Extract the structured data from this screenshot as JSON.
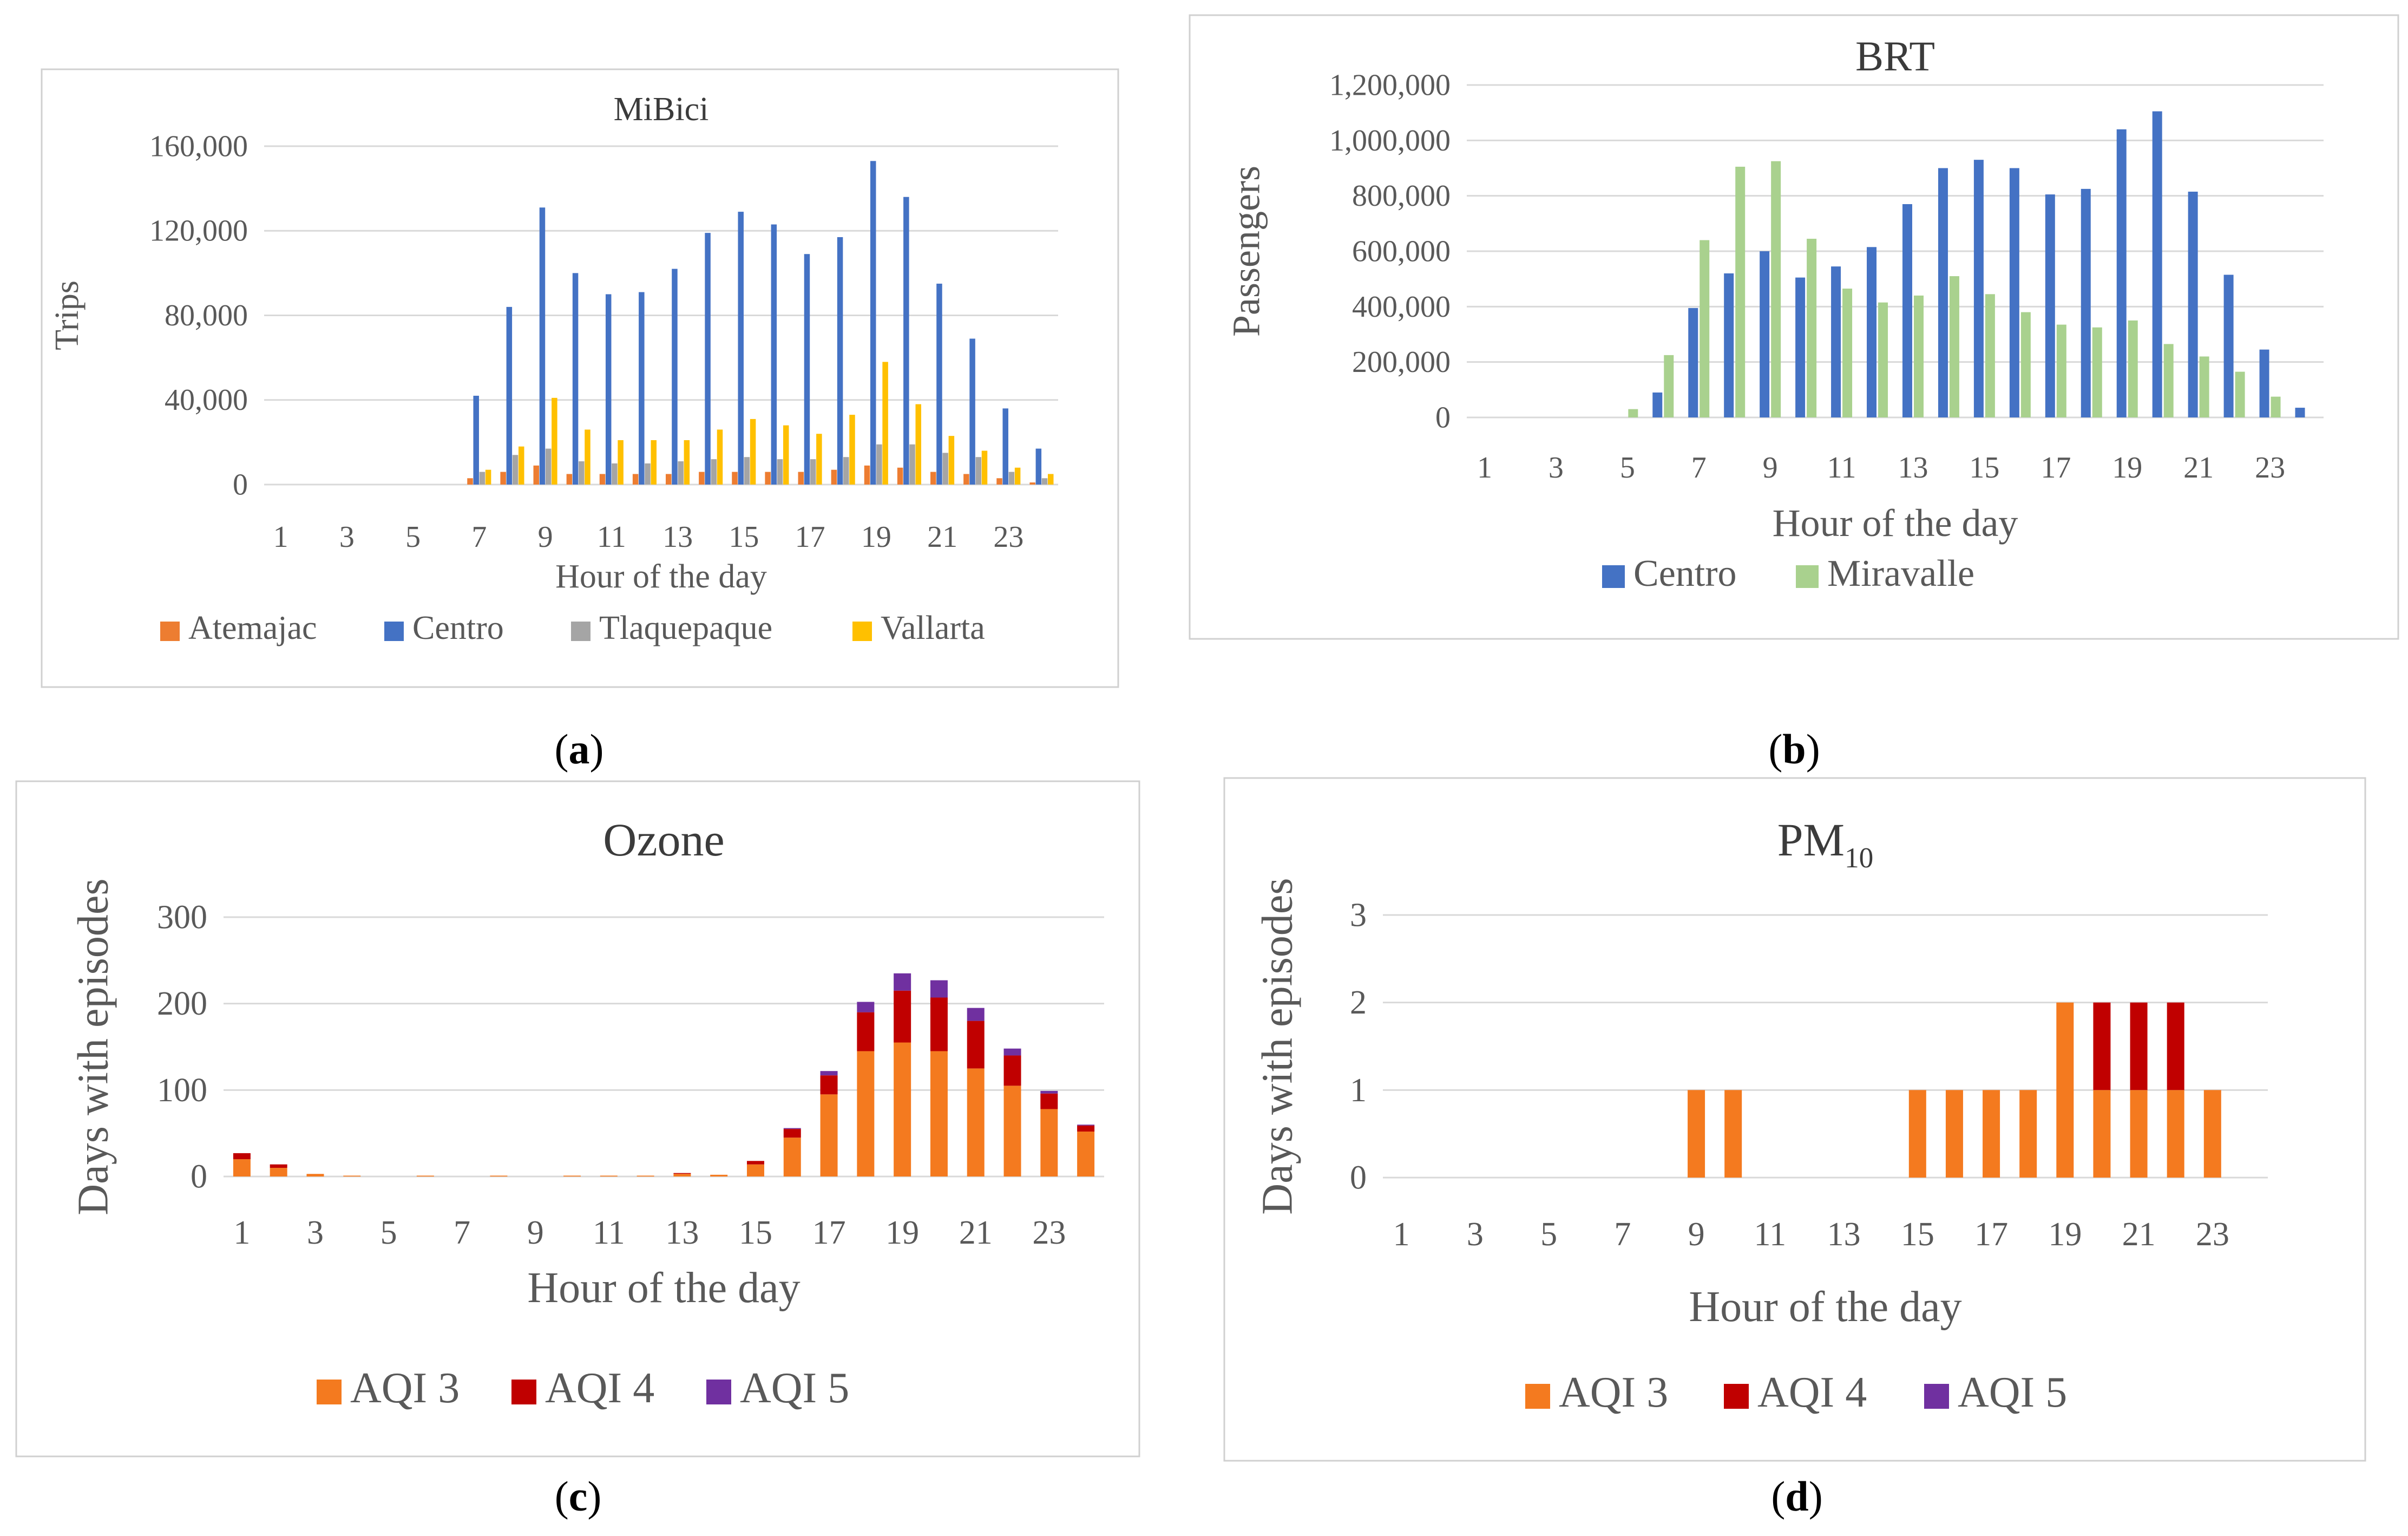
{
  "colors": {
    "atemajac": "#ED7D31",
    "centro": "#4472C4",
    "tlaquepaque": "#A5A5A5",
    "vallarta": "#FFC000",
    "brt_centro": "#4472C4",
    "miravalle": "#A9D18E",
    "aqi3": "#F47A1F",
    "aqi4": "#C00000",
    "aqi5": "#7030A0",
    "gridline": "#D9D9D9",
    "text": "#595959",
    "border": "#D0D0D0"
  },
  "panel_labels": {
    "a": {
      "open": "(",
      "letter": "a",
      "close": ")"
    },
    "b": {
      "open": "(",
      "letter": "b",
      "close": ")"
    },
    "c": {
      "open": "(",
      "letter": "c",
      "close": ")"
    },
    "d": {
      "open": "(",
      "letter": "d",
      "close": ")"
    }
  },
  "chart_data": [
    {
      "id": "a",
      "type": "bar",
      "title": "MiBici",
      "xlabel": "Hour of the day",
      "ylabel": "Trips",
      "ylim": [
        0,
        160000
      ],
      "yticks": [
        0,
        40000,
        80000,
        120000,
        160000
      ],
      "ytick_labels": [
        "0",
        "40,000",
        "80,000",
        "120,000",
        "160,000"
      ],
      "categories": [
        "1",
        "2",
        "3",
        "4",
        "5",
        "6",
        "7",
        "8",
        "9",
        "10",
        "11",
        "12",
        "13",
        "14",
        "15",
        "16",
        "17",
        "18",
        "19",
        "20",
        "21",
        "22",
        "23",
        "24"
      ],
      "xtick_labels": [
        "1",
        "",
        "3",
        "",
        "5",
        "",
        "7",
        "",
        "9",
        "",
        "11",
        "",
        "13",
        "",
        "15",
        "",
        "17",
        "",
        "19",
        "",
        "21",
        "",
        "23",
        ""
      ],
      "legend": [
        "Atemajac",
        "Centro",
        "Tlaquepaque",
        "Vallarta"
      ],
      "series": [
        {
          "name": "Atemajac",
          "color_key": "atemajac",
          "values": [
            0,
            0,
            0,
            0,
            0,
            0,
            3000,
            6000,
            9000,
            5000,
            5000,
            5000,
            5000,
            6000,
            6000,
            6000,
            6000,
            7000,
            9000,
            8000,
            6000,
            5000,
            3000,
            1000
          ]
        },
        {
          "name": "Centro",
          "color_key": "centro",
          "values": [
            0,
            0,
            0,
            0,
            0,
            0,
            42000,
            84000,
            131000,
            100000,
            90000,
            91000,
            102000,
            119000,
            129000,
            123000,
            109000,
            117000,
            153000,
            136000,
            95000,
            69000,
            36000,
            17000
          ]
        },
        {
          "name": "Tlaquepaque",
          "color_key": "tlaquepaque",
          "values": [
            0,
            0,
            0,
            0,
            0,
            0,
            6000,
            14000,
            17000,
            11000,
            10000,
            10000,
            11000,
            12000,
            13000,
            12000,
            12000,
            13000,
            19000,
            19000,
            15000,
            13000,
            6000,
            3000
          ]
        },
        {
          "name": "Vallarta",
          "color_key": "vallarta",
          "values": [
            0,
            0,
            0,
            0,
            0,
            0,
            7000,
            18000,
            41000,
            26000,
            21000,
            21000,
            21000,
            26000,
            31000,
            28000,
            24000,
            33000,
            58000,
            38000,
            23000,
            16000,
            8000,
            5000
          ]
        }
      ]
    },
    {
      "id": "b",
      "type": "bar",
      "title": "BRT",
      "xlabel": "Hour of the day",
      "ylabel": "Passengers",
      "ylim": [
        0,
        1200000
      ],
      "yticks": [
        0,
        200000,
        400000,
        600000,
        800000,
        1000000,
        1200000
      ],
      "ytick_labels": [
        "0",
        "200,000",
        "400,000",
        "600,000",
        "800,000",
        "1,000,000",
        "1,200,000"
      ],
      "categories": [
        "1",
        "2",
        "3",
        "4",
        "5",
        "6",
        "7",
        "8",
        "9",
        "10",
        "11",
        "12",
        "13",
        "14",
        "15",
        "16",
        "17",
        "18",
        "19",
        "20",
        "21",
        "22",
        "23",
        "24"
      ],
      "xtick_labels": [
        "1",
        "",
        "3",
        "",
        "5",
        "",
        "7",
        "",
        "9",
        "",
        "11",
        "",
        "13",
        "",
        "15",
        "",
        "17",
        "",
        "19",
        "",
        "21",
        "",
        "23",
        ""
      ],
      "legend": [
        "Centro",
        "Miravalle"
      ],
      "series": [
        {
          "name": "Centro",
          "color_key": "brt_centro",
          "values": [
            0,
            0,
            0,
            0,
            0,
            90000,
            395000,
            520000,
            600000,
            505000,
            545000,
            615000,
            770000,
            900000,
            930000,
            900000,
            805000,
            825000,
            1040000,
            1105000,
            815000,
            515000,
            245000,
            35000
          ]
        },
        {
          "name": "Miravalle",
          "color_key": "miravalle",
          "values": [
            0,
            0,
            0,
            0,
            30000,
            225000,
            640000,
            905000,
            925000,
            645000,
            465000,
            415000,
            440000,
            510000,
            445000,
            380000,
            335000,
            325000,
            350000,
            265000,
            220000,
            165000,
            75000,
            0
          ]
        }
      ]
    },
    {
      "id": "c",
      "type": "stacked_bar",
      "title": "Ozone",
      "xlabel": "Hour of the day",
      "ylabel": "Days with episodes",
      "ylim": [
        0,
        300
      ],
      "yticks": [
        0,
        100,
        200,
        300
      ],
      "ytick_labels": [
        "0",
        "100",
        "200",
        "300"
      ],
      "categories": [
        "1",
        "2",
        "3",
        "4",
        "5",
        "6",
        "7",
        "8",
        "9",
        "10",
        "11",
        "12",
        "13",
        "14",
        "15",
        "16",
        "17",
        "18",
        "19",
        "20",
        "21",
        "22",
        "23",
        "24"
      ],
      "xtick_labels": [
        "1",
        "",
        "3",
        "",
        "5",
        "",
        "7",
        "",
        "9",
        "",
        "11",
        "",
        "13",
        "",
        "15",
        "",
        "17",
        "",
        "19",
        "",
        "21",
        "",
        "23",
        ""
      ],
      "legend": [
        "AQI 3",
        "AQI 4",
        "AQI 5"
      ],
      "series": [
        {
          "name": "AQI 3",
          "color_key": "aqi3",
          "values": [
            20,
            10,
            3,
            1,
            0,
            1,
            0,
            1,
            0,
            1,
            1,
            1,
            3,
            2,
            14,
            45,
            95,
            145,
            155,
            145,
            125,
            105,
            78,
            52
          ]
        },
        {
          "name": "AQI 4",
          "color_key": "aqi4",
          "values": [
            7,
            4,
            0,
            0,
            0,
            0,
            0,
            0,
            0,
            0,
            0,
            0,
            1,
            0,
            4,
            10,
            22,
            45,
            60,
            62,
            55,
            35,
            18,
            7
          ]
        },
        {
          "name": "AQI 5",
          "color_key": "aqi5",
          "values": [
            0,
            0,
            0,
            0,
            0,
            0,
            0,
            0,
            0,
            0,
            0,
            0,
            0,
            0,
            0,
            1,
            5,
            12,
            20,
            20,
            15,
            8,
            3,
            1
          ]
        }
      ]
    },
    {
      "id": "d",
      "type": "stacked_bar",
      "title_main": "PM",
      "title_sub": "10",
      "xlabel": "Hour of the day",
      "ylabel": "Days with episodes",
      "ylim": [
        0,
        3
      ],
      "yticks": [
        0,
        1,
        2,
        3
      ],
      "ytick_labels": [
        "0",
        "1",
        "2",
        "3"
      ],
      "categories": [
        "1",
        "2",
        "3",
        "4",
        "5",
        "6",
        "7",
        "8",
        "9",
        "10",
        "11",
        "12",
        "13",
        "14",
        "15",
        "16",
        "17",
        "18",
        "19",
        "20",
        "21",
        "22",
        "23",
        "24"
      ],
      "xtick_labels": [
        "1",
        "",
        "3",
        "",
        "5",
        "",
        "7",
        "",
        "9",
        "",
        "11",
        "",
        "13",
        "",
        "15",
        "",
        "17",
        "",
        "19",
        "",
        "21",
        "",
        "23",
        ""
      ],
      "legend": [
        "AQI 3",
        "AQI 4",
        "AQI 5"
      ],
      "series": [
        {
          "name": "AQI 3",
          "color_key": "aqi3",
          "values": [
            0,
            0,
            0,
            0,
            0,
            0,
            0,
            0,
            1,
            1,
            0,
            0,
            0,
            0,
            1,
            1,
            1,
            1,
            2,
            1,
            1,
            1,
            1,
            0
          ]
        },
        {
          "name": "AQI 4",
          "color_key": "aqi4",
          "values": [
            0,
            0,
            0,
            0,
            0,
            0,
            0,
            0,
            0,
            0,
            0,
            0,
            0,
            0,
            0,
            0,
            0,
            0,
            0,
            1,
            1,
            1,
            0,
            0
          ]
        },
        {
          "name": "AQI 5",
          "color_key": "aqi5",
          "values": [
            0,
            0,
            0,
            0,
            0,
            0,
            0,
            0,
            0,
            0,
            0,
            0,
            0,
            0,
            0,
            0,
            0,
            0,
            0,
            0,
            0,
            0,
            0,
            0
          ]
        }
      ]
    }
  ]
}
